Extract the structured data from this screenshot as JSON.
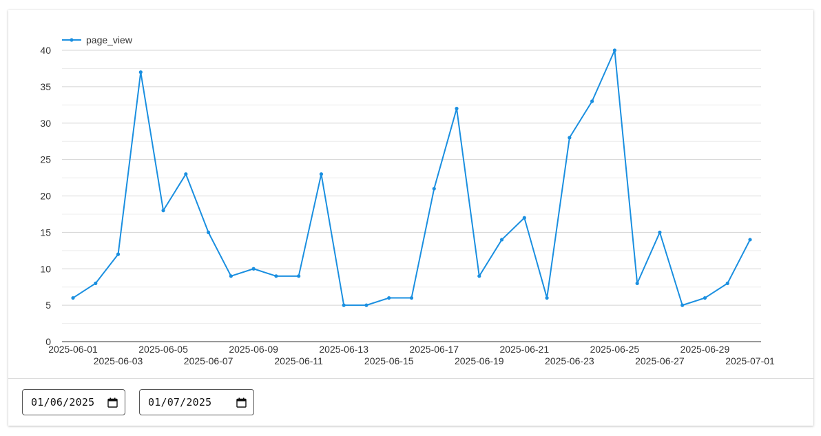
{
  "chart_data": {
    "type": "line",
    "x": [
      "2025-06-01",
      "2025-06-02",
      "2025-06-03",
      "2025-06-04",
      "2025-06-05",
      "2025-06-06",
      "2025-06-07",
      "2025-06-08",
      "2025-06-09",
      "2025-06-10",
      "2025-06-11",
      "2025-06-12",
      "2025-06-13",
      "2025-06-14",
      "2025-06-15",
      "2025-06-16",
      "2025-06-17",
      "2025-06-18",
      "2025-06-19",
      "2025-06-20",
      "2025-06-21",
      "2025-06-22",
      "2025-06-23",
      "2025-06-24",
      "2025-06-25",
      "2025-06-26",
      "2025-06-27",
      "2025-06-28",
      "2025-06-29",
      "2025-06-30",
      "2025-07-01"
    ],
    "series": [
      {
        "name": "page_view",
        "color": "#1a8fe0",
        "values": [
          6,
          8,
          12,
          37,
          18,
          23,
          15,
          9,
          10,
          9,
          9,
          23,
          5,
          5,
          6,
          6,
          21,
          32,
          9,
          14,
          17,
          6,
          28,
          33,
          40,
          8,
          15,
          5,
          6,
          8,
          14
        ]
      }
    ],
    "x_tick_labels": [
      "2025-06-01",
      "2025-06-03",
      "2025-06-05",
      "2025-06-07",
      "2025-06-09",
      "2025-06-11",
      "2025-06-13",
      "2025-06-15",
      "2025-06-17",
      "2025-06-19",
      "2025-06-21",
      "2025-06-23",
      "2025-06-25",
      "2025-06-27",
      "2025-06-29",
      "2025-07-01"
    ],
    "y_ticks": [
      0,
      5,
      10,
      15,
      20,
      25,
      30,
      35,
      40
    ],
    "ylim": [
      0,
      40
    ],
    "grid": true,
    "legend": "top-left",
    "title": "",
    "xlabel": "",
    "ylabel": ""
  },
  "controls": {
    "start_date": "01/06/2025",
    "end_date": "01/07/2025",
    "calendar_icon": "calendar-icon"
  }
}
